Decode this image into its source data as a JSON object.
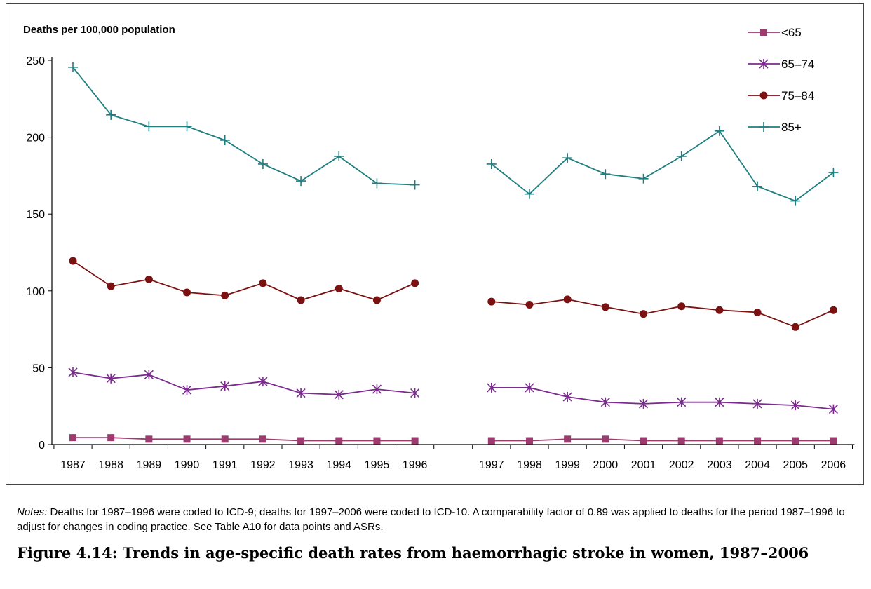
{
  "chart_data": {
    "type": "line",
    "ylabel": "Deaths per 100,000 population",
    "ylim": [
      0,
      250
    ],
    "yticks": [
      0,
      50,
      100,
      150,
      200,
      250
    ],
    "x": [
      "1987",
      "1988",
      "1989",
      "1990",
      "1991",
      "1992",
      "1993",
      "1994",
      "1995",
      "1996",
      "1997",
      "1998",
      "1999",
      "2000",
      "2001",
      "2002",
      "2003",
      "2004",
      "2005",
      "2006"
    ],
    "break_after": "1996",
    "grid": false,
    "legend_position": "top-right",
    "series": [
      {
        "name": "<65",
        "marker": "square",
        "color": "#9B3B6E",
        "values": [
          4.5,
          4.5,
          3.5,
          3.5,
          3.5,
          3.5,
          2.5,
          2.5,
          2.5,
          2.5,
          2.5,
          2.5,
          3.5,
          3.5,
          2.5,
          2.5,
          2.5,
          2.5,
          2.5,
          2.5
        ]
      },
      {
        "name": "65–74",
        "marker": "asterisk",
        "color": "#7B2A8E",
        "values": [
          47,
          43,
          45.5,
          35.5,
          38,
          41,
          33.5,
          32.5,
          36,
          33.5,
          37,
          37,
          31,
          27.5,
          26.5,
          27.5,
          27.5,
          26.5,
          25.5,
          23
        ]
      },
      {
        "name": "75–84",
        "marker": "circle",
        "color": "#7B1111",
        "values": [
          119.5,
          103,
          107.5,
          99,
          97,
          105,
          94,
          101.5,
          94,
          105,
          93,
          91,
          94.5,
          89.5,
          85,
          90,
          87.5,
          86,
          76.5,
          87.5
        ]
      },
      {
        "name": "85+",
        "marker": "plus",
        "color": "#1F7E80",
        "values": [
          245.5,
          214.5,
          207,
          207,
          198,
          182.5,
          171.5,
          187.5,
          170,
          169,
          182.5,
          163,
          186.5,
          176,
          173,
          187.5,
          204,
          168,
          158.5,
          177
        ]
      }
    ]
  },
  "notes": {
    "label": "Notes:",
    "text": " Deaths for 1987–1996 were coded to ICD-9; deaths for 1997–2006 were coded to ICD-10. A comparability factor of 0.89 was applied to deaths for the period 1987–1996 to adjust for changes in coding practice. See Table A10 for data points and ASRs."
  },
  "caption": "Figure 4.14: Trends in age-specific death rates from haemorrhagic stroke in women, 1987–2006"
}
